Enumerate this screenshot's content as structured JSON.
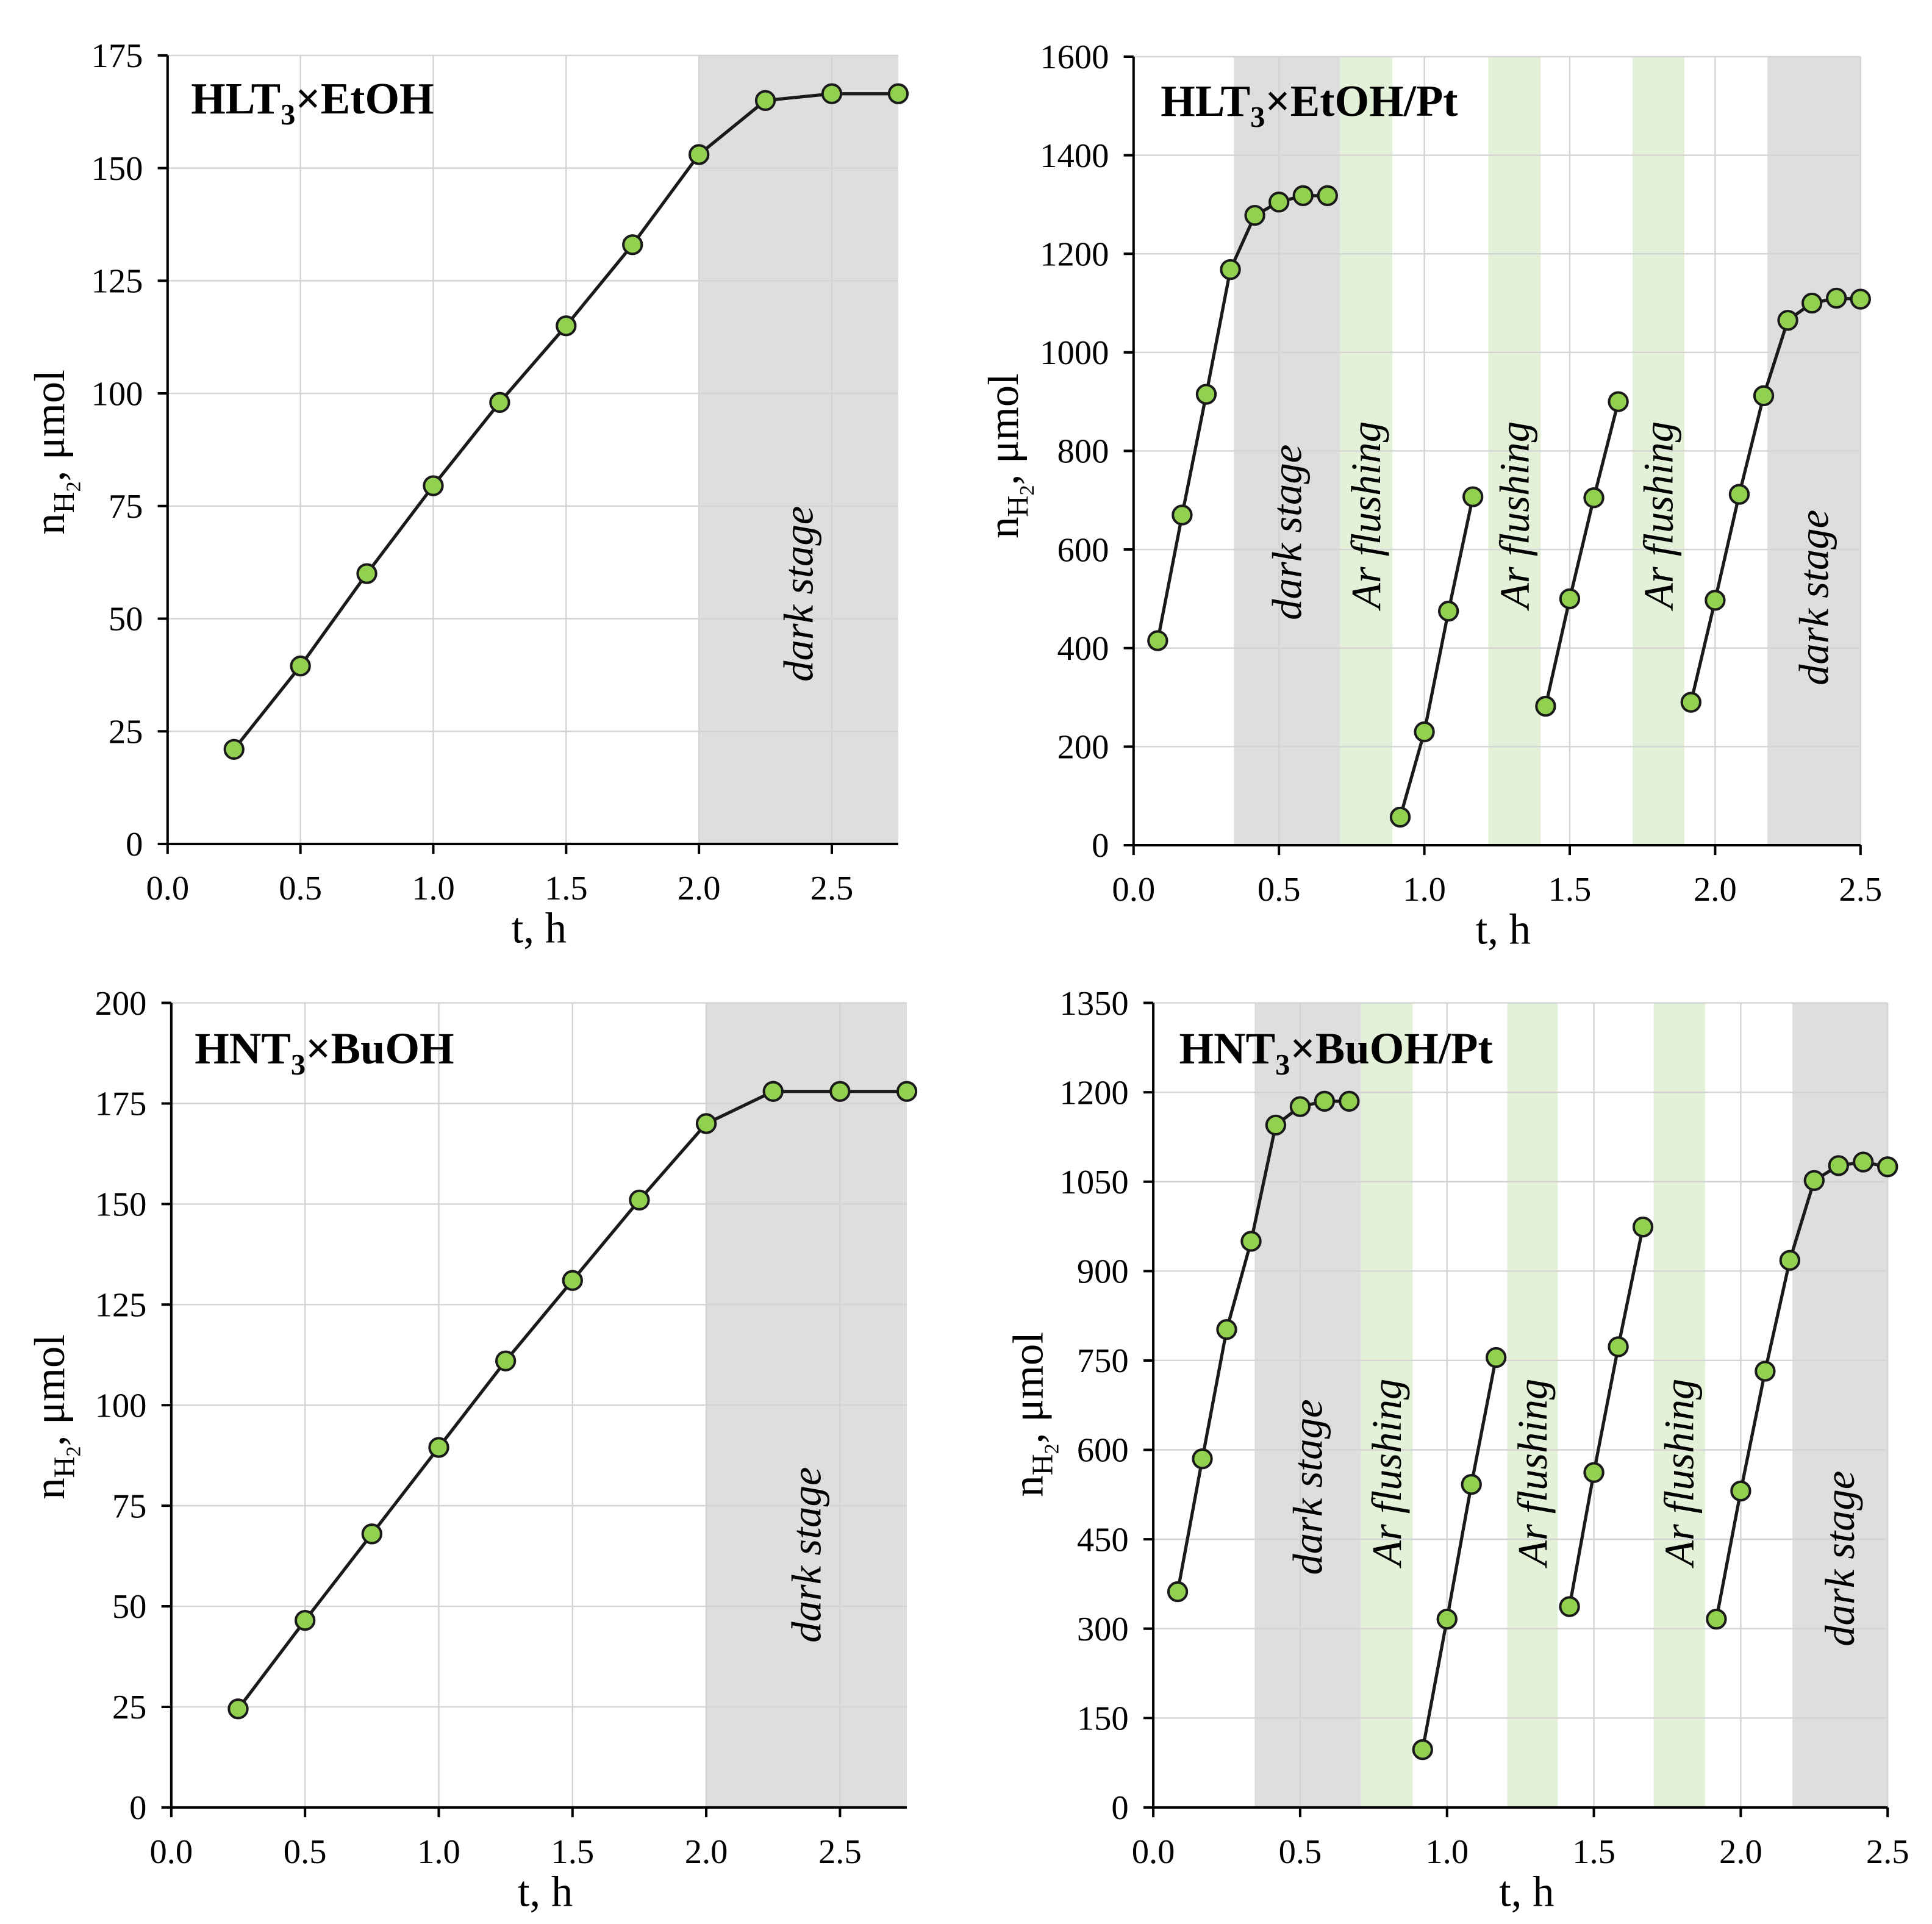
{
  "colors": {
    "marker_fill": "#92d050",
    "line": "#1a1a1a",
    "grid": "#d4d4d4",
    "axis": "#000000"
  },
  "chart_data": [
    {
      "type": "line",
      "title": {
        "main": "HLT",
        "sub": "3",
        "rest": "×EtOH"
      },
      "xlabel": "t, h",
      "ylabel": {
        "symbol": "n",
        "sub": "H",
        "subsub": "2",
        "unit": ", μmol"
      },
      "xlim": [
        0,
        2.75
      ],
      "ylim": [
        0,
        175
      ],
      "grid": true,
      "xticks": [
        0,
        0.5,
        1.0,
        1.5,
        2.0,
        2.5
      ],
      "xtick_labels": [
        "0.0",
        "0.5",
        "1.0",
        "1.5",
        "2.0",
        "2.5"
      ],
      "yticks": [
        0,
        25,
        50,
        75,
        100,
        125,
        150,
        175
      ],
      "ytick_labels": [
        "0",
        "25",
        "50",
        "75",
        "100",
        "125",
        "150",
        "175"
      ],
      "regions": [
        {
          "label": "dark stage",
          "from": 2.0,
          "to": 2.75,
          "fill": "#dedede",
          "text_color": "#8c8c8c"
        }
      ],
      "series": [
        {
          "x": [
            0.25,
            0.5,
            0.75,
            1.0,
            1.25,
            1.5,
            1.75,
            2.0,
            2.25,
            2.5,
            2.75
          ],
          "y": [
            21,
            39.5,
            60,
            79.5,
            98,
            115,
            133,
            153,
            165,
            166.5,
            166.5
          ]
        }
      ]
    },
    {
      "type": "line",
      "title": {
        "main": "HLT",
        "sub": "3",
        "rest": "×EtOH/Pt"
      },
      "xlabel": "t, h",
      "ylabel": {
        "symbol": "n",
        "sub": "H",
        "subsub": "2",
        "unit": ", μmol"
      },
      "xlim": [
        0,
        2.5
      ],
      "ylim": [
        0,
        1600
      ],
      "grid": true,
      "xticks": [
        0,
        0.5,
        1.0,
        1.5,
        2.0,
        2.5
      ],
      "xtick_labels": [
        "0.0",
        "0.5",
        "1.0",
        "1.5",
        "2.0",
        "2.5"
      ],
      "yticks": [
        0,
        200,
        400,
        600,
        800,
        1000,
        1200,
        1400,
        1600
      ],
      "ytick_labels": [
        "0",
        "200",
        "400",
        "600",
        "800",
        "1000",
        "1200",
        "1400",
        "1600"
      ],
      "regions": [
        {
          "label": "dark stage",
          "from": 0.345,
          "to": 0.71,
          "fill": "#dedede",
          "text_color": "#8c8c8c"
        },
        {
          "label": "Ar flushing",
          "from": 0.71,
          "to": 0.89,
          "fill": "#e3f1d8",
          "text_color": "#7a9a45"
        },
        {
          "label": "Ar flushing",
          "from": 1.22,
          "to": 1.4,
          "fill": "#e3f1d8",
          "text_color": "#7a9a45"
        },
        {
          "label": "Ar flushing",
          "from": 1.716,
          "to": 1.894,
          "fill": "#e3f1d8",
          "text_color": "#7a9a45"
        },
        {
          "label": "dark stage",
          "from": 2.18,
          "to": 2.5,
          "fill": "#dedede",
          "text_color": "#8c8c8c"
        }
      ],
      "series": [
        {
          "x": [
            0.083,
            0.167,
            0.25,
            0.333,
            0.417,
            0.5,
            0.583,
            0.667
          ],
          "y": [
            415,
            670,
            915,
            1168,
            1278,
            1305,
            1318,
            1318
          ]
        },
        {
          "x": [
            0.917,
            1.0,
            1.083,
            1.167
          ],
          "y": [
            57,
            230,
            475,
            707
          ]
        },
        {
          "x": [
            1.417,
            1.5,
            1.583,
            1.667
          ],
          "y": [
            282,
            500,
            705,
            900
          ]
        },
        {
          "x": [
            1.917,
            2.0,
            2.083,
            2.167,
            2.25,
            2.333,
            2.417,
            2.5
          ],
          "y": [
            290,
            497,
            712,
            912,
            1065,
            1100,
            1110,
            1108
          ]
        }
      ]
    },
    {
      "type": "line",
      "title": {
        "main": "HNT",
        "sub": "3",
        "rest": "×BuOH"
      },
      "xlabel": "t, h",
      "ylabel": {
        "symbol": "n",
        "sub": "H",
        "subsub": "2",
        "unit": ", μmol"
      },
      "xlim": [
        0,
        2.75
      ],
      "ylim": [
        0,
        200
      ],
      "grid": true,
      "xticks": [
        0,
        0.5,
        1.0,
        1.5,
        2.0,
        2.5
      ],
      "xtick_labels": [
        "0.0",
        "0.5",
        "1.0",
        "1.5",
        "2.0",
        "2.5"
      ],
      "yticks": [
        0,
        25,
        50,
        75,
        100,
        125,
        150,
        175,
        200
      ],
      "ytick_labels": [
        "0",
        "25",
        "50",
        "75",
        "100",
        "125",
        "150",
        "175",
        "200"
      ],
      "regions": [
        {
          "label": "dark stage",
          "from": 2.0,
          "to": 2.75,
          "fill": "#dedede",
          "text_color": "#8c8c8c"
        }
      ],
      "series": [
        {
          "x": [
            0.25,
            0.5,
            0.75,
            1.0,
            1.25,
            1.5,
            1.75,
            2.0,
            2.25,
            2.5,
            2.75
          ],
          "y": [
            24.5,
            46.5,
            68,
            89.5,
            111,
            131,
            151,
            170,
            178,
            178,
            178
          ]
        }
      ]
    },
    {
      "type": "line",
      "title": {
        "main": "HNT",
        "sub": "3",
        "rest": "×BuOH/Pt"
      },
      "xlabel": "t, h",
      "ylabel": {
        "symbol": "n",
        "sub": "H",
        "subsub": "2",
        "unit": ", μmol"
      },
      "xlim": [
        0,
        2.5
      ],
      "ylim": [
        0,
        1350
      ],
      "grid": true,
      "xticks": [
        0,
        0.5,
        1.0,
        1.5,
        2.0,
        2.5
      ],
      "xtick_labels": [
        "0.0",
        "0.5",
        "1.0",
        "1.5",
        "2.0",
        "2.5"
      ],
      "yticks": [
        0,
        150,
        300,
        450,
        600,
        750,
        900,
        1050,
        1200,
        1350
      ],
      "ytick_labels": [
        "0",
        "150",
        "300",
        "450",
        "600",
        "750",
        "900",
        "1050",
        "1200",
        "1350"
      ],
      "regions": [
        {
          "label": "dark stage",
          "from": 0.345,
          "to": 0.707,
          "fill": "#dedede",
          "text_color": "#8c8c8c"
        },
        {
          "label": "Ar flushing",
          "from": 0.707,
          "to": 0.883,
          "fill": "#e3f1d8",
          "text_color": "#7a9a45"
        },
        {
          "label": "Ar flushing",
          "from": 1.205,
          "to": 1.377,
          "fill": "#e3f1d8",
          "text_color": "#7a9a45"
        },
        {
          "label": "Ar flushing",
          "from": 1.703,
          "to": 1.879,
          "fill": "#e3f1d8",
          "text_color": "#7a9a45"
        },
        {
          "label": "dark stage",
          "from": 2.176,
          "to": 2.5,
          "fill": "#dedede",
          "text_color": "#8c8c8c"
        }
      ],
      "series": [
        {
          "x": [
            0.083,
            0.167,
            0.25,
            0.333,
            0.417,
            0.5,
            0.583,
            0.667
          ],
          "y": [
            362,
            585,
            802,
            950,
            1145,
            1176,
            1185,
            1185
          ]
        },
        {
          "x": [
            0.917,
            1.0,
            1.083,
            1.167
          ],
          "y": [
            97,
            316,
            542,
            755
          ]
        },
        {
          "x": [
            1.417,
            1.5,
            1.583,
            1.667
          ],
          "y": [
            337,
            562,
            773,
            974
          ]
        },
        {
          "x": [
            1.917,
            2.0,
            2.083,
            2.167,
            2.25,
            2.333,
            2.417,
            2.5
          ],
          "y": [
            316,
            531,
            732,
            918,
            1052,
            1077,
            1083,
            1075
          ]
        }
      ]
    }
  ]
}
